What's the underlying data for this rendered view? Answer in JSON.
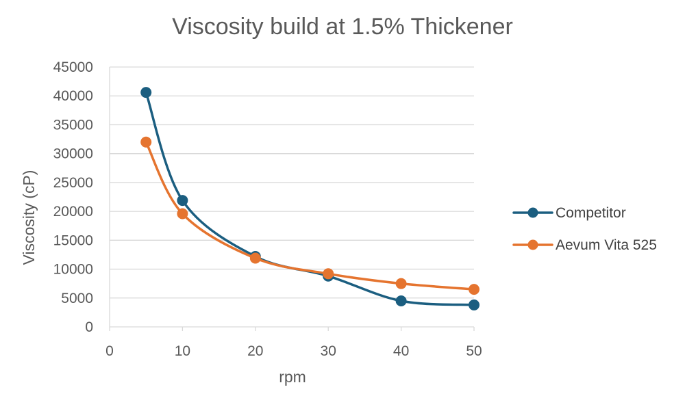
{
  "chart_data": {
    "type": "line",
    "title": "Viscosity build at 1.5% Thickener",
    "xlabel": "rpm",
    "ylabel": "Viscosity (cP)",
    "xlim": [
      0,
      50
    ],
    "ylim": [
      0,
      45000
    ],
    "x_ticks": [
      "0",
      "10",
      "20",
      "30",
      "40",
      "50"
    ],
    "y_ticks": [
      "0",
      "5000",
      "10000",
      "15000",
      "20000",
      "25000",
      "30000",
      "35000",
      "40000",
      "45000"
    ],
    "grid": "horizontal",
    "legend_position": "right",
    "smoothed": true,
    "series": [
      {
        "name": "Competitor",
        "color": "#1b5e80",
        "points": [
          [
            5,
            40600
          ],
          [
            10,
            21900
          ],
          [
            20,
            12200
          ],
          [
            30,
            8800
          ],
          [
            40,
            4500
          ],
          [
            50,
            3800
          ]
        ]
      },
      {
        "name": "Aevum Vita 525",
        "color": "#e5742f",
        "points": [
          [
            5,
            32000
          ],
          [
            10,
            19600
          ],
          [
            20,
            11900
          ],
          [
            30,
            9200
          ],
          [
            40,
            7500
          ],
          [
            50,
            6500
          ]
        ]
      }
    ]
  }
}
